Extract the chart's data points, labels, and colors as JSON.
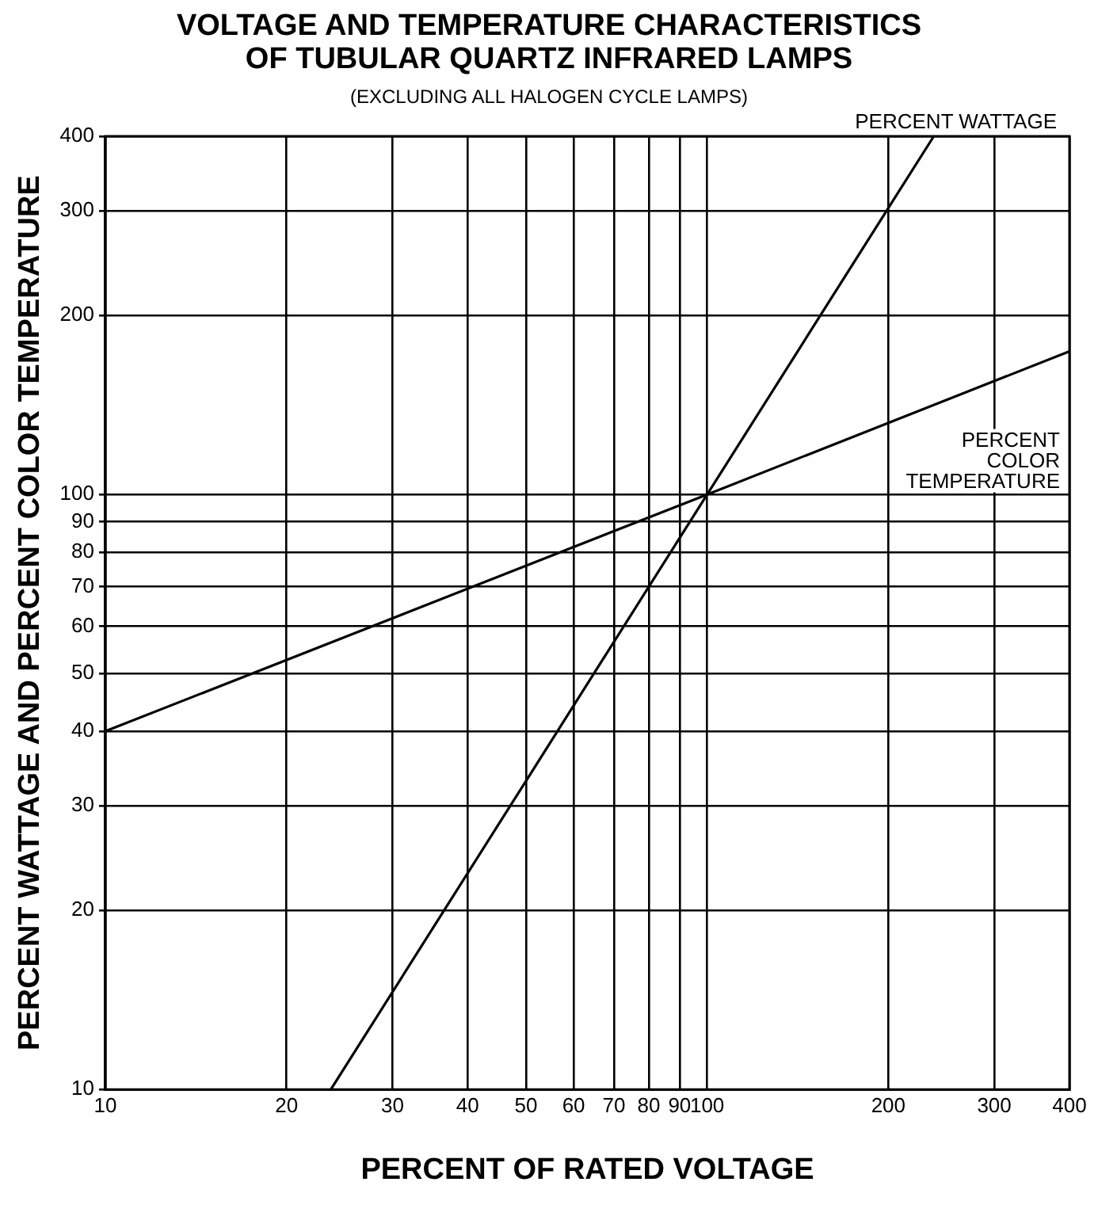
{
  "chart_data": {
    "type": "line",
    "title": "VOLTAGE AND TEMPERATURE CHARACTERISTICS\nOF TUBULAR QUARTZ INFRARED LAMPS",
    "subtitle": "(EXCLUDING ALL HALOGEN CYCLE LAMPS)",
    "xlabel": "PERCENT OF RATED VOLTAGE",
    "ylabel": "PERCENT WATTAGE AND PERCENT COLOR TEMPERATURE",
    "log": "xy",
    "grid": true,
    "legend": false,
    "marker": "none",
    "line_style": "solid",
    "xlim": [
      10,
      400
    ],
    "ylim": [
      10,
      400
    ],
    "xticks": [
      10,
      20,
      30,
      40,
      50,
      60,
      70,
      80,
      90,
      100,
      200,
      300,
      400
    ],
    "yticks": [
      10,
      20,
      30,
      40,
      50,
      60,
      70,
      80,
      90,
      100,
      200,
      300,
      400
    ],
    "series": [
      {
        "name": "PERCENT WATTAGE",
        "color": "#000000",
        "x": [
          23.7,
          50,
          100,
          200,
          238
        ],
        "values": [
          10,
          33,
          100,
          303,
          400
        ]
      },
      {
        "name": "PERCENT COLOR TEMPERATURE",
        "color": "#000000",
        "x": [
          10,
          100,
          400
        ],
        "values": [
          40,
          100,
          174
        ]
      }
    ]
  }
}
